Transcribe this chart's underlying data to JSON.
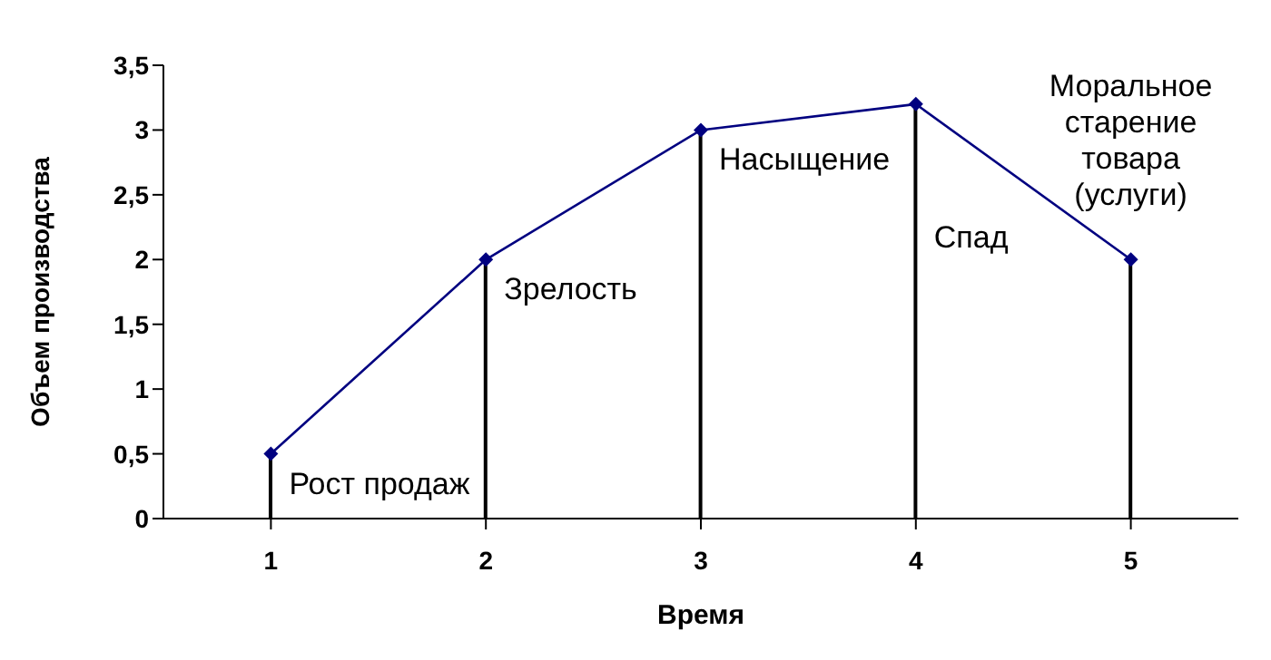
{
  "chart_data": {
    "type": "line",
    "xlabel": "Время",
    "ylabel": "Объем производства",
    "categories": [
      "1",
      "2",
      "3",
      "4",
      "5"
    ],
    "series": [
      {
        "color": "#000080",
        "values": [
          0.5,
          2,
          3,
          3.2,
          2
        ]
      },
      {
        "type": "bar",
        "color": "#000000",
        "values": [
          0.5,
          2,
          3,
          3.2,
          2
        ]
      }
    ],
    "ylim": [
      0,
      3.5
    ],
    "yticks": [
      0,
      {
        "value": 0.5,
        "label": "0,5"
      },
      1,
      {
        "value": 1.5,
        "label": "1,5"
      },
      2,
      {
        "value": 2.5,
        "label": "2,5"
      },
      3,
      {
        "value": 3.5,
        "label": "3,5"
      }
    ],
    "marker": "diamond",
    "grid": false,
    "legend": false,
    "annotations": [
      {
        "text": "Рост продаж",
        "x": "1",
        "y": 0.5
      },
      {
        "text": "Зрелость",
        "x": "2",
        "y": 2
      },
      {
        "text": "Насыщение",
        "x": "3",
        "y": 3
      },
      {
        "text": "Спад",
        "x": "4",
        "y": 2.4
      },
      {
        "text": "Моральное\nстарение\nтовара\n(услуги)",
        "x": "5",
        "y": 2
      }
    ]
  }
}
